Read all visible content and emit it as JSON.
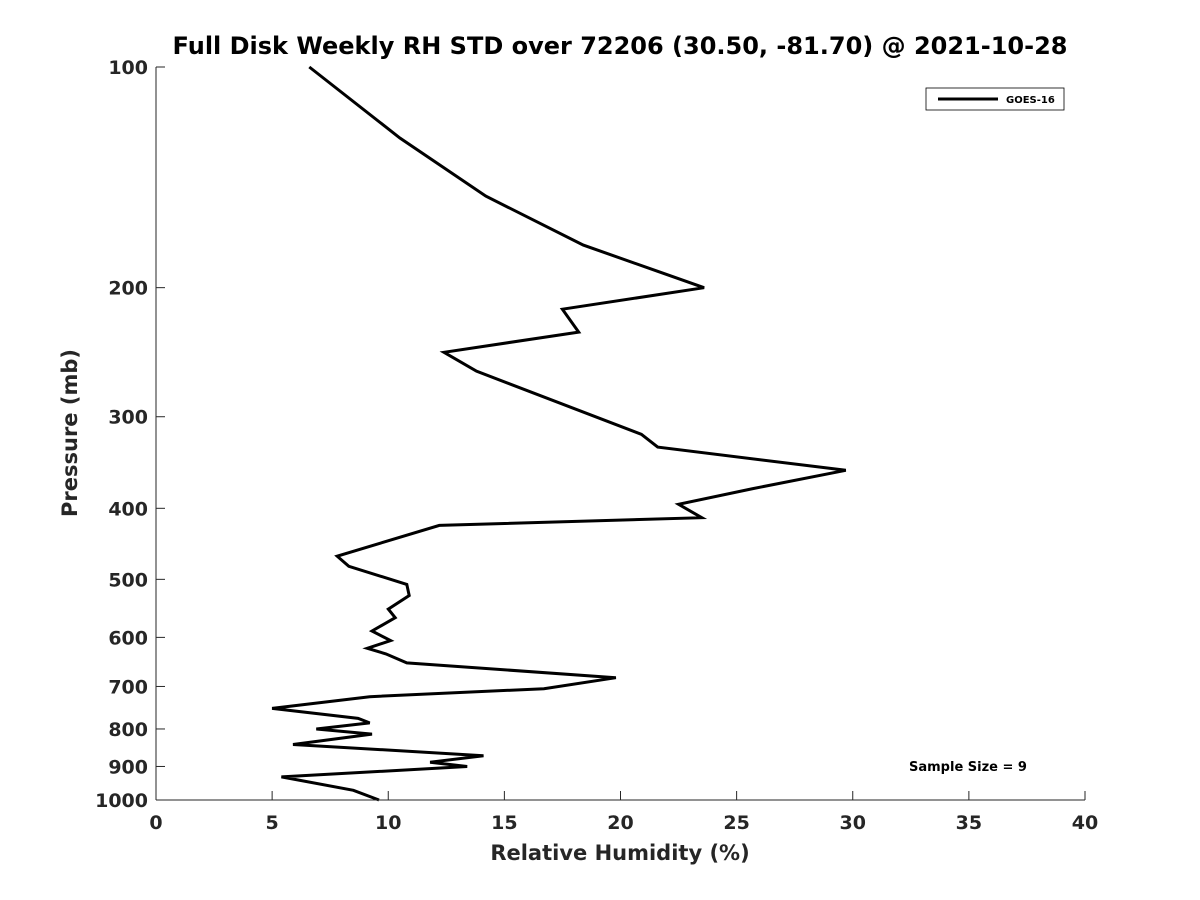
{
  "chart_data": {
    "type": "line",
    "title": "Full Disk Weekly RH STD over 72206 (30.50, -81.70) @ 2021-10-28",
    "xlabel": "Relative Humidity (%)",
    "ylabel": "Pressure (mb)",
    "xlim": [
      0,
      40
    ],
    "ylim": [
      100,
      1000
    ],
    "y_scale": "log",
    "y_reversed": true,
    "xticks": [
      0,
      5,
      10,
      15,
      20,
      25,
      30,
      35,
      40
    ],
    "yticks": [
      100,
      200,
      300,
      400,
      500,
      600,
      700,
      800,
      900,
      1000
    ],
    "grid": false,
    "legend_position": "top-right",
    "annotation": "Sample Size = 9",
    "series": [
      {
        "name": "GOES-16",
        "color": "#000000",
        "points": [
          [
            6.6,
            100
          ],
          [
            10.5,
            125
          ],
          [
            14.2,
            150
          ],
          [
            18.4,
            175
          ],
          [
            21.6,
            190
          ],
          [
            23.6,
            200
          ],
          [
            17.5,
            214
          ],
          [
            18.2,
            230
          ],
          [
            12.4,
            245
          ],
          [
            13.8,
            260
          ],
          [
            20.9,
            317
          ],
          [
            21.6,
            330
          ],
          [
            29.7,
            355
          ],
          [
            25.7,
            376
          ],
          [
            22.5,
            395
          ],
          [
            23.5,
            412
          ],
          [
            12.2,
            422
          ],
          [
            7.8,
            465
          ],
          [
            8.3,
            480
          ],
          [
            10.8,
            508
          ],
          [
            10.9,
            526
          ],
          [
            10.0,
            549
          ],
          [
            10.3,
            564
          ],
          [
            9.3,
            588
          ],
          [
            10.1,
            606
          ],
          [
            9.1,
            621
          ],
          [
            9.9,
            632
          ],
          [
            10.8,
            650
          ],
          [
            19.8,
            681
          ],
          [
            16.7,
            705
          ],
          [
            9.2,
            723
          ],
          [
            5.0,
            750
          ],
          [
            8.7,
            774
          ],
          [
            9.2,
            785
          ],
          [
            6.9,
            800
          ],
          [
            9.3,
            813
          ],
          [
            5.9,
            840
          ],
          [
            14.1,
            870
          ],
          [
            11.8,
            888
          ],
          [
            13.4,
            900
          ],
          [
            5.4,
            930
          ],
          [
            8.5,
            970
          ],
          [
            9.6,
            1000
          ]
        ]
      }
    ]
  }
}
